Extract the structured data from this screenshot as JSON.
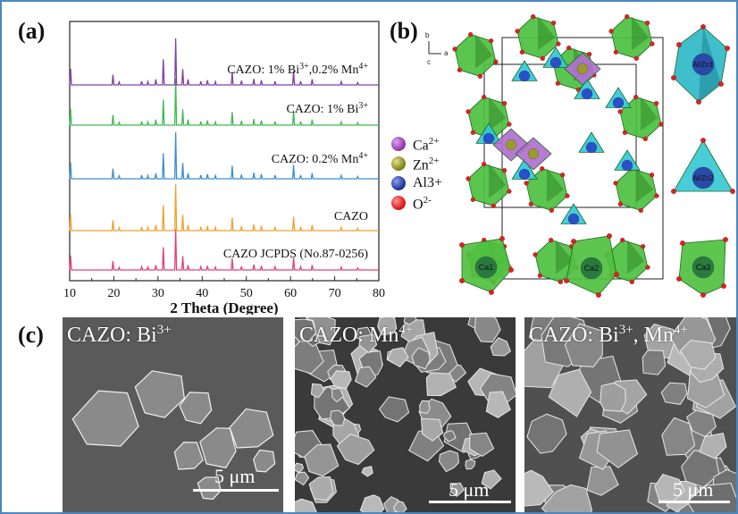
{
  "panels": {
    "a": "(a)",
    "b": "(b)",
    "c": "(c)"
  },
  "chart_data": {
    "type": "line",
    "xlabel": "2 Theta (Degree)",
    "xlim": [
      10,
      80
    ],
    "xticks": [
      10,
      20,
      30,
      40,
      50,
      60,
      70,
      80
    ],
    "series": [
      {
        "name": "CAZO JCPDS (No.87-0256)",
        "color": "#e0407a"
      },
      {
        "name": "CAZO",
        "color": "#f0a030"
      },
      {
        "name": "CAZO: 0.2% Mn4+",
        "color": "#3a8fd0"
      },
      {
        "name": "CAZO: 1% Bi3+",
        "color": "#40b850"
      },
      {
        "name": "CAZO: 1% Bi3+,0.2% Mn4+",
        "color": "#8040a0"
      }
    ],
    "peaks": [
      {
        "x": 10.2,
        "h": 0.35
      },
      {
        "x": 19.8,
        "h": 0.22
      },
      {
        "x": 21.2,
        "h": 0.06
      },
      {
        "x": 26.3,
        "h": 0.08
      },
      {
        "x": 27.7,
        "h": 0.07
      },
      {
        "x": 29.5,
        "h": 0.12
      },
      {
        "x": 31.2,
        "h": 0.55
      },
      {
        "x": 34.0,
        "h": 1.0
      },
      {
        "x": 35.6,
        "h": 0.34
      },
      {
        "x": 36.8,
        "h": 0.12
      },
      {
        "x": 39.7,
        "h": 0.08
      },
      {
        "x": 41.2,
        "h": 0.1
      },
      {
        "x": 43.0,
        "h": 0.07
      },
      {
        "x": 46.8,
        "h": 0.28
      },
      {
        "x": 48.9,
        "h": 0.09
      },
      {
        "x": 51.7,
        "h": 0.13
      },
      {
        "x": 53.4,
        "h": 0.1
      },
      {
        "x": 56.5,
        "h": 0.08
      },
      {
        "x": 60.7,
        "h": 0.3
      },
      {
        "x": 62.3,
        "h": 0.08
      },
      {
        "x": 64.9,
        "h": 0.12
      },
      {
        "x": 71.5,
        "h": 0.07
      },
      {
        "x": 75.2,
        "h": 0.05
      }
    ]
  },
  "legend": [
    {
      "ion": "Ca",
      "charge": "2+",
      "color": "#9a40b0"
    },
    {
      "ion": "Zn",
      "charge": "2+",
      "color": "#8a8a20"
    },
    {
      "ion": "Al3+",
      "charge": "",
      "color": "#2a3a9a"
    },
    {
      "ion": "O",
      "charge": "2-",
      "color": "#e02020"
    }
  ],
  "crystal_labels": {
    "az1": "Al/Zn1",
    "az2": "Al/Zn2",
    "ca1": "Ca1",
    "ca2": "Ca2",
    "ca3": "Ca3"
  },
  "axes_mini": {
    "b": "b",
    "a": "a",
    "c": "c"
  },
  "sem": [
    {
      "base": "CAZO: Bi",
      "sup": "3+",
      "extra_base": "",
      "extra_sup": "",
      "scale": "5 μm"
    },
    {
      "base": "CAZO: Mn",
      "sup": "4+",
      "extra_base": "",
      "extra_sup": "",
      "scale": "5 μm"
    },
    {
      "base": "CAZO: Bi",
      "sup": "3+",
      "extra_base": ", Mn",
      "extra_sup": "4+",
      "scale": "5 μm"
    }
  ]
}
